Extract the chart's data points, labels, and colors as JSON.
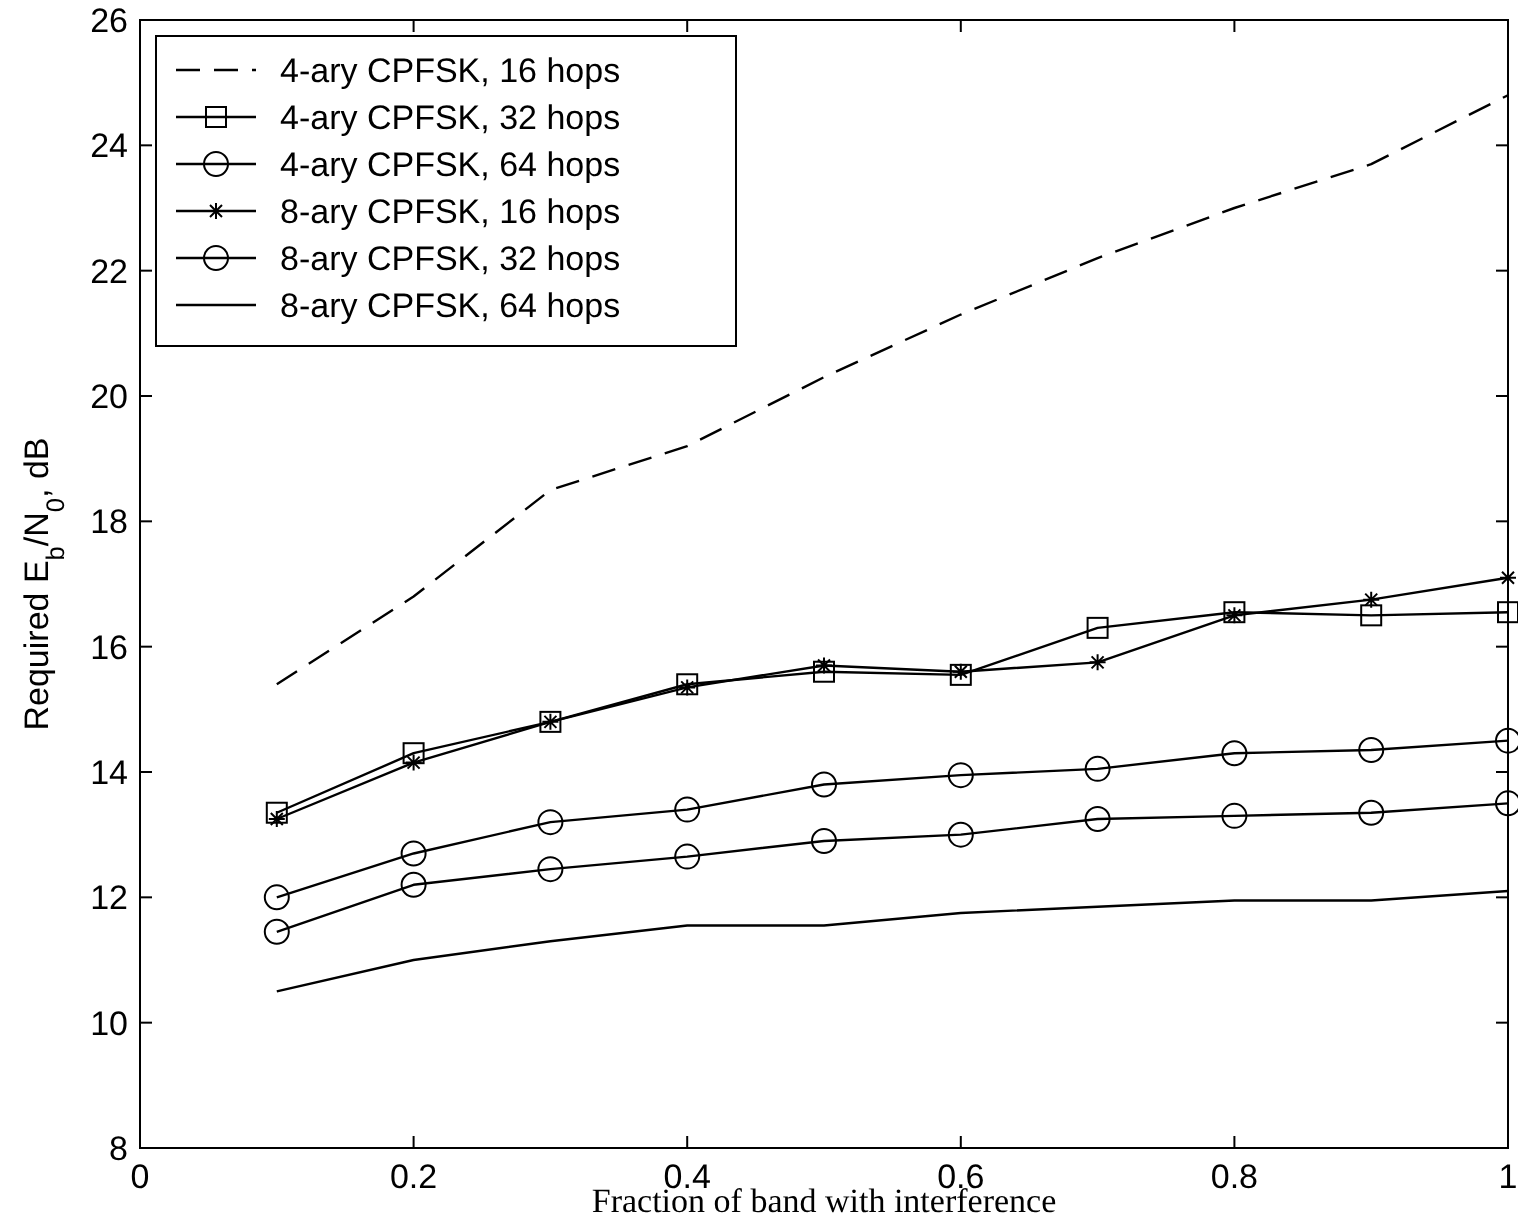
{
  "chart_data": {
    "type": "line",
    "xlabel": "Fraction of band with interference",
    "ylabel": "Required E$_{b}$/N$_{0}$, dB",
    "x": [
      0.1,
      0.2,
      0.3,
      0.4,
      0.5,
      0.6,
      0.7,
      0.8,
      0.9,
      1.0
    ],
    "xlim": [
      0,
      1
    ],
    "xticks": [
      0,
      0.2,
      0.4,
      0.6,
      0.8,
      1
    ],
    "ylim": [
      8,
      26
    ],
    "yticks": [
      8,
      10,
      12,
      14,
      16,
      18,
      20,
      22,
      24,
      26
    ],
    "grid": false,
    "legend": "top left",
    "series": [
      {
        "name": "4-ary CPFSK, 16 hops",
        "color": "#000000",
        "line_style": "dashed",
        "marker": "none",
        "values": [
          15.4,
          16.8,
          18.5,
          19.2,
          20.3,
          21.3,
          22.2,
          23.0,
          23.7,
          24.8
        ]
      },
      {
        "name": "4-ary CPFSK, 32 hops",
        "color": "#000000",
        "line_style": "solid",
        "marker": "square",
        "values": [
          13.35,
          14.3,
          14.8,
          15.4,
          15.6,
          15.55,
          16.3,
          16.55,
          16.5,
          16.55
        ]
      },
      {
        "name": "4-ary CPFSK, 64 hops",
        "color": "#000000",
        "line_style": "solid",
        "marker": "circle",
        "values": [
          12.0,
          12.7,
          13.2,
          13.4,
          13.8,
          13.95,
          14.05,
          14.3,
          14.35,
          14.5
        ]
      },
      {
        "name": "8-ary CPFSK, 16 hops",
        "color": "#000000",
        "line_style": "solid",
        "marker": "cross",
        "values": [
          13.25,
          14.15,
          14.8,
          15.35,
          15.7,
          15.6,
          15.75,
          16.5,
          16.75,
          17.1
        ]
      },
      {
        "name": "8-ary CPFSK, 32 hops",
        "color": "#000000",
        "line_style": "solid",
        "marker": "circle",
        "values": [
          11.45,
          12.2,
          12.45,
          12.65,
          12.9,
          13.0,
          13.25,
          13.3,
          13.35,
          13.5
        ]
      },
      {
        "name": "8-ary CPFSK, 64 hops",
        "color": "#000000",
        "line_style": "solid",
        "marker": "none",
        "values": [
          10.5,
          11.0,
          11.3,
          11.55,
          11.55,
          11.75,
          11.85,
          11.95,
          11.95,
          12.1
        ]
      }
    ]
  }
}
